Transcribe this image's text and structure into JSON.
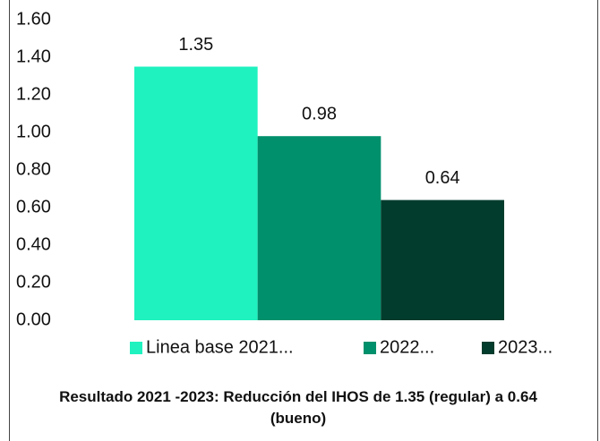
{
  "chart_data": {
    "type": "bar",
    "title": "Resultado 2021 -2023: Reducción del IHOS de 1.35 (regular) a 0.64 (bueno)",
    "categories": [
      null
    ],
    "series": [
      {
        "name": "Linea base 2021...",
        "color": "#1ff2bf",
        "values": [
          1.35
        ]
      },
      {
        "name": "2022...",
        "color": "#00906b",
        "values": [
          0.98
        ]
      },
      {
        "name": "2023...",
        "color": "#013c2c",
        "values": [
          0.64
        ]
      }
    ],
    "ylim": [
      0,
      1.6
    ],
    "yticks": [
      {
        "value": 0,
        "label": "0.00"
      },
      {
        "value": 0.2,
        "label": "0.20"
      },
      {
        "value": 0.4,
        "label": "0.40"
      },
      {
        "value": 0.6,
        "label": "0.60"
      },
      {
        "value": 0.8,
        "label": "0.80"
      },
      {
        "value": 1.0,
        "label": "1.00"
      },
      {
        "value": 1.2,
        "label": "1.20"
      },
      {
        "value": 1.4,
        "label": "1.40"
      },
      {
        "value": 1.6,
        "label": "1.60"
      }
    ],
    "grid": false,
    "legend": "bottom"
  }
}
